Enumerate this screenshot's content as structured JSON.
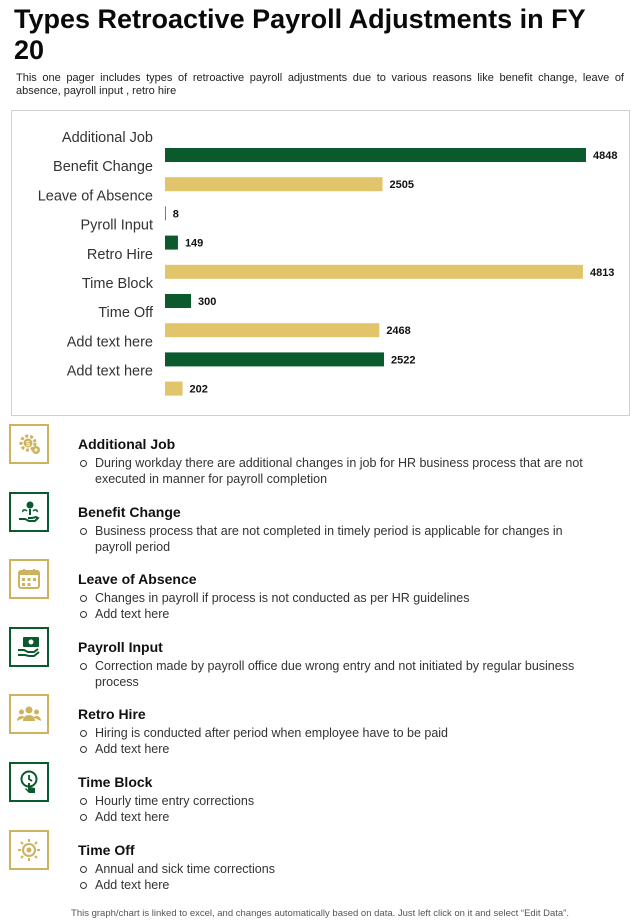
{
  "title": "Types Retroactive Payroll Adjustments in FY 20",
  "subtitle": "This one pager includes types of retroactive  payroll adjustments due to various  reasons like benefit change, leave  of absence, payroll input , retro hire",
  "colors": {
    "green": "#0b5a2e",
    "gold": "#e2c46a",
    "gold_border": "#cdb35e"
  },
  "chart_data": {
    "type": "bar",
    "orientation": "horizontal",
    "categories": [
      "Additional Job",
      "Benefit Change",
      "Leave of Absence",
      "Pyroll Input",
      "Retro Hire",
      "Time Block",
      "Time Off",
      "Add text here",
      "Add text here"
    ],
    "values": [
      4848,
      2505,
      8,
      149,
      4813,
      300,
      2468,
      2522,
      202
    ],
    "bar_colors": [
      "green",
      "gold",
      "green",
      "green",
      "gold",
      "green",
      "gold",
      "green",
      "gold"
    ],
    "xlim": [
      0,
      4848
    ],
    "grid": false,
    "legend": "none"
  },
  "items": [
    {
      "title": "Additional Job",
      "icon": "gear-dollar-icon",
      "style": "gold",
      "bullets": [
        "During workday there are additional changes in job for HR business process that are not executed in manner for payroll completion"
      ]
    },
    {
      "title": "Benefit Change",
      "icon": "hand-money-icon",
      "style": "green",
      "bullets": [
        "Business process that are not completed in timely period is applicable for changes in payroll period"
      ]
    },
    {
      "title": "Leave of Absence",
      "icon": "calendar-icon",
      "style": "gold",
      "bullets": [
        "Changes in payroll  if process is not conducted as per HR guidelines",
        "Add text here"
      ]
    },
    {
      "title": "Payroll Input",
      "icon": "cash-hand-icon",
      "style": "green",
      "bullets": [
        "Correction made by payroll office due wrong entry and not initiated by regular business process"
      ]
    },
    {
      "title": "Retro Hire",
      "icon": "people-group-icon",
      "style": "gold",
      "bullets": [
        "Hiring is conducted after period when employee have to be paid",
        "Add text here"
      ]
    },
    {
      "title": "Time Block",
      "icon": "clock-touch-icon",
      "style": "green",
      "bullets": [
        "Hourly time entry corrections",
        "Add text here"
      ]
    },
    {
      "title": "Time Off",
      "icon": "sun-icon",
      "style": "gold",
      "bullets": [
        "Annual  and sick time corrections",
        "Add text here"
      ]
    }
  ],
  "footer": "This graph/chart is linked to excel, and changes automatically based on data. Just left click on it and select “Edit Data”."
}
